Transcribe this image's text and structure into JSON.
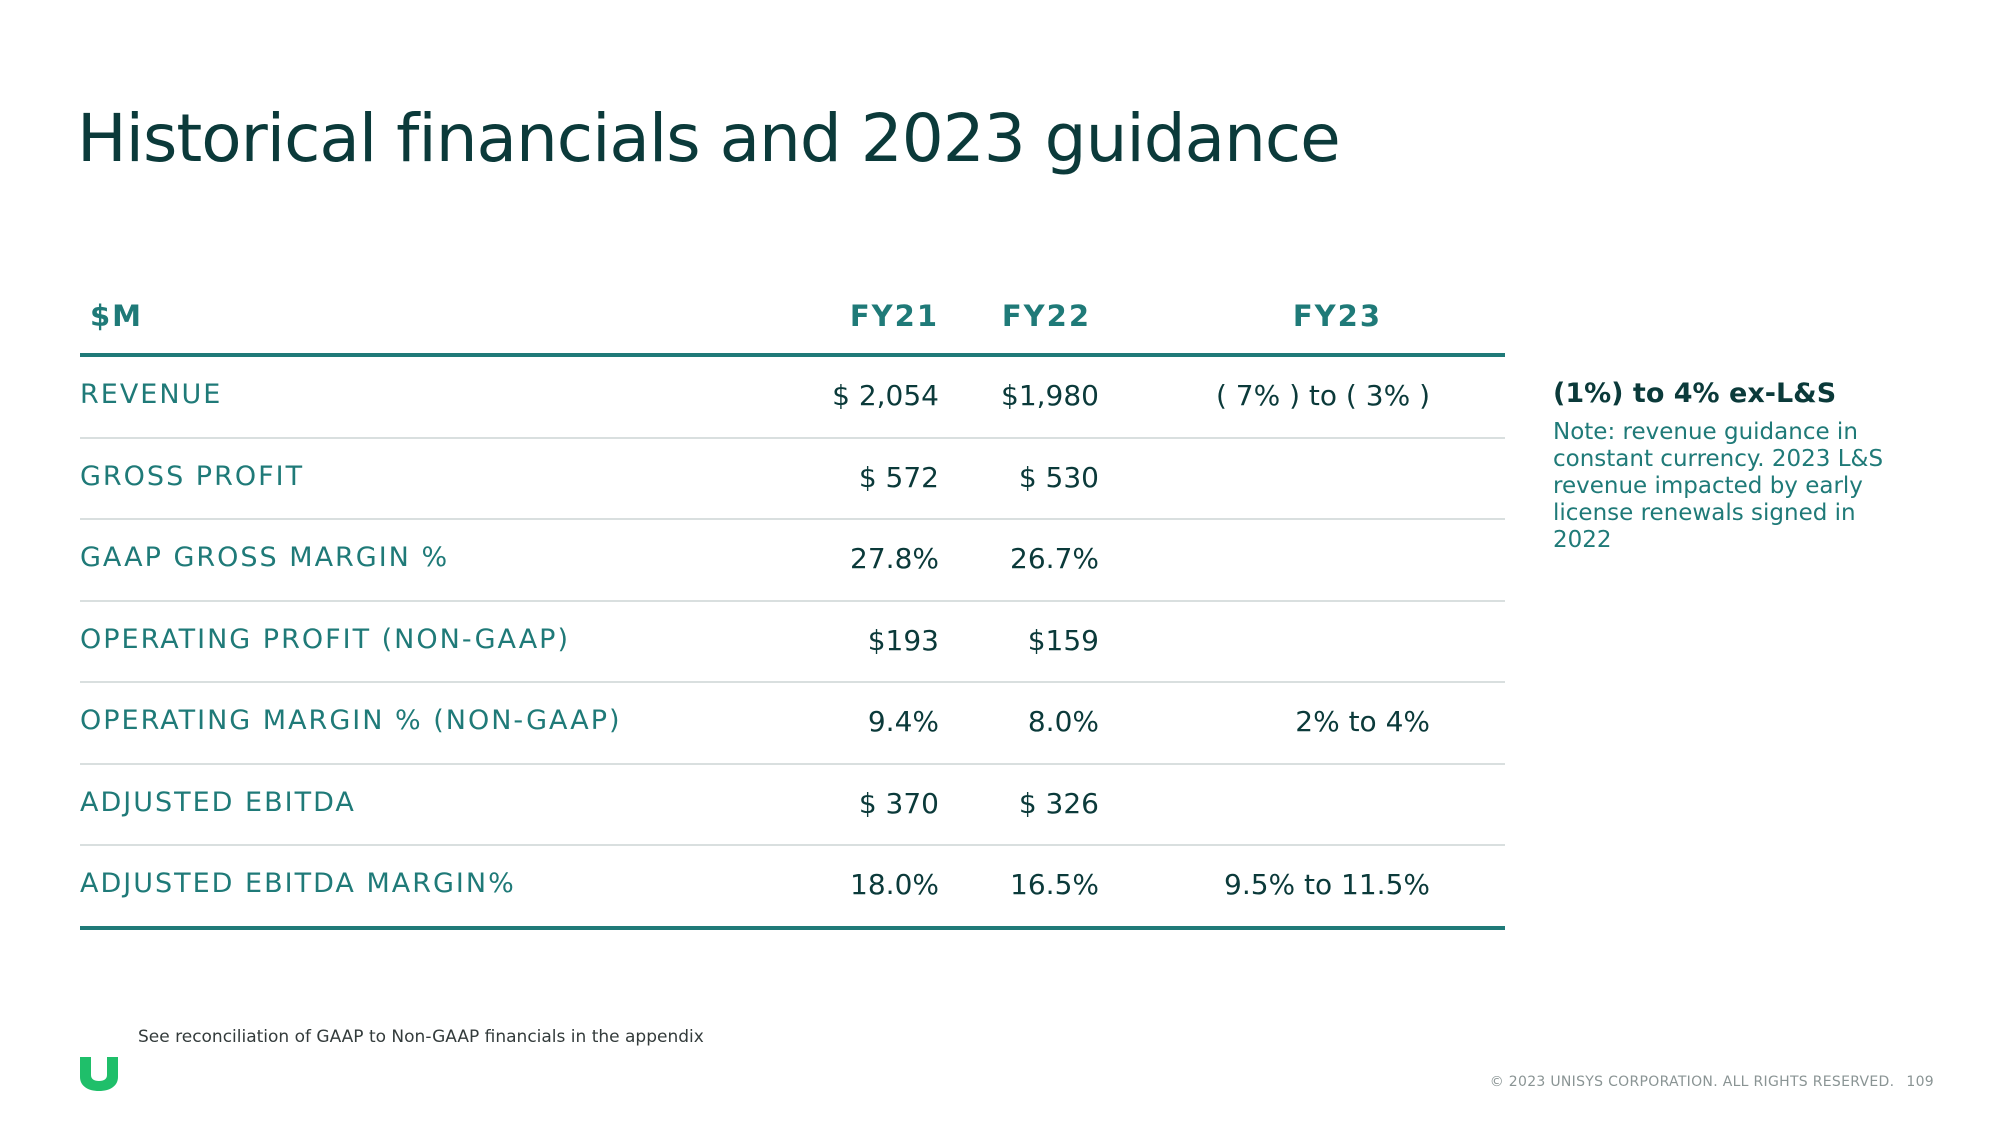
{
  "slide": {
    "title": "Historical financials and 2023 guidance"
  },
  "table": {
    "headers": {
      "label": "$M",
      "fy21": "FY21",
      "fy22": "FY22",
      "fy23": "FY23"
    },
    "rows": [
      {
        "label": "REVENUE",
        "fy21": "$ 2,054",
        "fy22": "$1,980",
        "fy23": "( 7% ) to ( 3% )"
      },
      {
        "label": "GROSS PROFIT",
        "fy21": "$ 572",
        "fy22": "$ 530",
        "fy23": ""
      },
      {
        "label": "GAAP GROSS MARGIN %",
        "fy21": "27.8%",
        "fy22": "26.7%",
        "fy23": ""
      },
      {
        "label": "OPERATING PROFIT (NON-GAAP)",
        "fy21": "$193",
        "fy22": "$159",
        "fy23": ""
      },
      {
        "label": "OPERATING MARGIN % (NON-GAAP)",
        "fy21": "9.4%",
        "fy22": "8.0%",
        "fy23": "2% to 4%"
      },
      {
        "label": "ADJUSTED EBITDA",
        "fy21": "$ 370",
        "fy22": "$ 326",
        "fy23": ""
      },
      {
        "label": "ADJUSTED EBITDA MARGIN%",
        "fy21": "18.0%",
        "fy22": "16.5%",
        "fy23": "9.5%  to 11.5%"
      }
    ]
  },
  "side_note": {
    "heading": "(1%) to 4%  ex-L&S",
    "body": "Note: revenue guidance in constant currency. 2023 L&S revenue impacted by early license renewals signed in 2022"
  },
  "footer": {
    "footnote": "See reconciliation of GAAP to Non-GAAP financials in the appendix",
    "copyright": "© 2023 UNISYS CORPORATION. ALL RIGHTS RESERVED.",
    "page_number": "109"
  },
  "logo": {
    "icon": "unisys-u-logo-icon",
    "color": "#1fbf6a"
  },
  "colors": {
    "title": "#0b3a3a",
    "accent_teal": "#1f7a78",
    "divider": "#d9dfdf"
  }
}
